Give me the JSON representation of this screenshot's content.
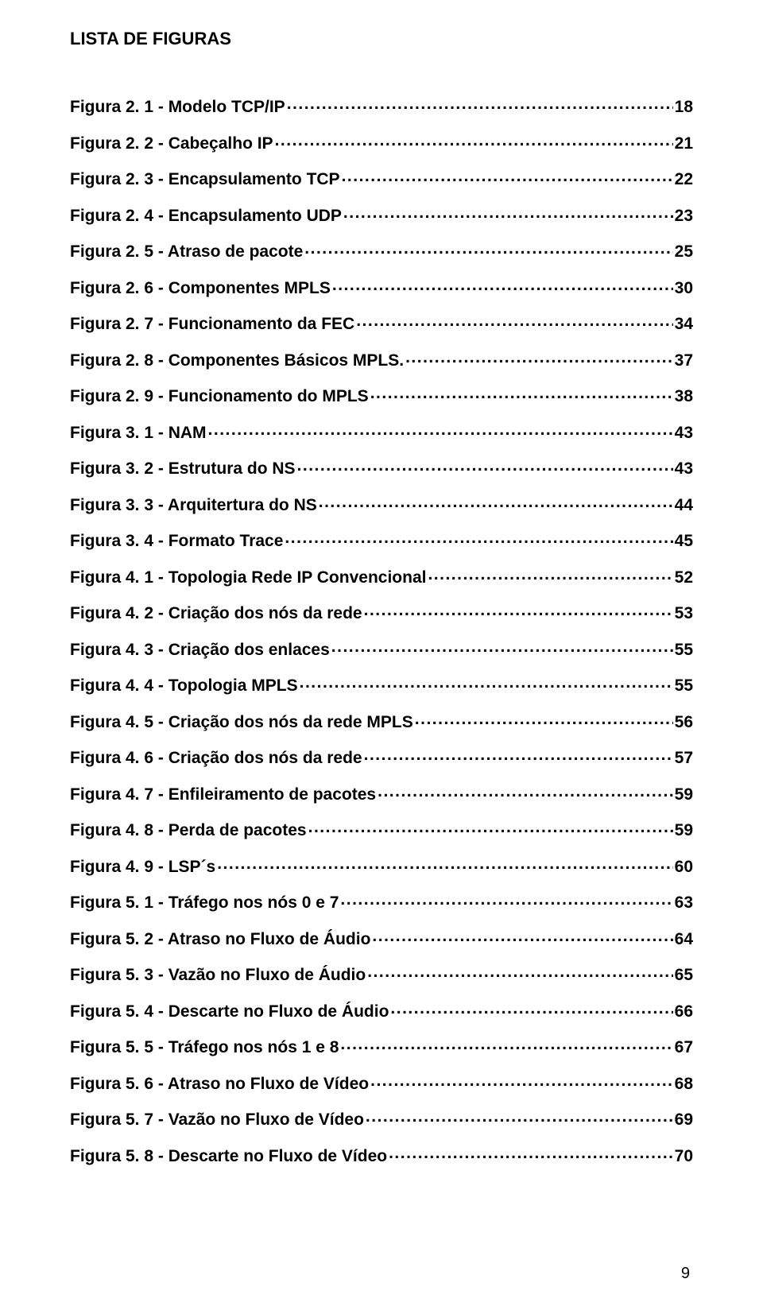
{
  "document": {
    "heading": "LISTA DE FIGURAS",
    "page_number": "9",
    "text_color": "#000000",
    "background_color": "#ffffff",
    "font_family": "Arial",
    "title_fontsize": 22,
    "entry_fontsize": 21,
    "entry_fontweight": "bold"
  },
  "entries": [
    {
      "label": "Figura 2. 1 - Modelo TCP/IP",
      "page": "18"
    },
    {
      "label": "Figura 2. 2 - Cabeçalho IP",
      "page": "21"
    },
    {
      "label": "Figura 2. 3 - Encapsulamento TCP",
      "page": "22"
    },
    {
      "label": "Figura 2. 4 - Encapsulamento UDP",
      "page": "23"
    },
    {
      "label": "Figura 2. 5 - Atraso de pacote",
      "page": "25"
    },
    {
      "label": "Figura 2. 6 - Componentes MPLS",
      "page": "30"
    },
    {
      "label": "Figura 2. 7 - Funcionamento da FEC",
      "page": "34"
    },
    {
      "label": "Figura 2. 8 - Componentes Básicos MPLS.",
      "page": "37"
    },
    {
      "label": "Figura 2. 9 - Funcionamento do MPLS",
      "page": "38"
    },
    {
      "label": "Figura 3. 1 - NAM",
      "page": "43"
    },
    {
      "label": "Figura 3. 2 - Estrutura do NS",
      "page": "43"
    },
    {
      "label": "Figura 3. 3 - Arquitertura do NS",
      "page": "44"
    },
    {
      "label": "Figura 3. 4 - Formato Trace",
      "page": "45"
    },
    {
      "label": "Figura 4. 1 - Topologia Rede IP Convencional",
      "page": "52"
    },
    {
      "label": "Figura 4. 2 - Criação dos nós da rede",
      "page": "53"
    },
    {
      "label": "Figura 4. 3 - Criação dos enlaces",
      "page": "55"
    },
    {
      "label": "Figura 4. 4 - Topologia MPLS",
      "page": "55"
    },
    {
      "label": "Figura 4. 5 - Criação dos nós da rede MPLS",
      "page": "56"
    },
    {
      "label": "Figura 4. 6 - Criação dos nós da rede",
      "page": "57"
    },
    {
      "label": "Figura 4. 7 - Enfileiramento de pacotes",
      "page": "59"
    },
    {
      "label": "Figura 4. 8 - Perda de pacotes",
      "page": "59"
    },
    {
      "label": "Figura 4. 9 - LSP´s",
      "page": "60"
    },
    {
      "label": "Figura 5. 1 - Tráfego nos nós 0 e 7",
      "page": "63"
    },
    {
      "label": "Figura 5. 2 - Atraso no Fluxo de Áudio",
      "page": "64"
    },
    {
      "label": "Figura 5. 3 - Vazão no Fluxo de Áudio",
      "page": "65"
    },
    {
      "label": "Figura 5. 4 - Descarte no Fluxo de Áudio",
      "page": "66"
    },
    {
      "label": "Figura 5. 5 - Tráfego nos nós 1 e 8",
      "page": "67"
    },
    {
      "label": "Figura 5. 6 - Atraso no Fluxo de Vídeo",
      "page": "68"
    },
    {
      "label": "Figura 5. 7 - Vazão no Fluxo de Vídeo",
      "page": "69"
    },
    {
      "label": "Figura 5. 8 - Descarte no Fluxo de Vídeo",
      "page": "70"
    }
  ]
}
